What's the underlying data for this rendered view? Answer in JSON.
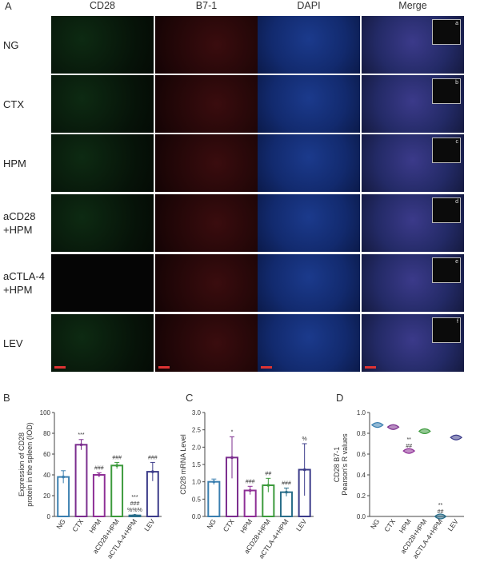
{
  "figure_a": {
    "letter": "A",
    "columns": [
      "CD28",
      "B7-1",
      "DAPI",
      "Merge"
    ],
    "rows": [
      {
        "label": "NG",
        "inset": "a"
      },
      {
        "label": "CTX",
        "inset": "b"
      },
      {
        "label": "HPM",
        "inset": "c"
      },
      {
        "label": "aCD28\n+HPM",
        "inset": "d"
      },
      {
        "label": "aCTLA-4\n+HPM",
        "inset": "e"
      },
      {
        "label": "LEV",
        "inset": "f"
      }
    ],
    "colors": {
      "cd28": "#0d2a12",
      "b71": "#3a0c0e",
      "dapi": "#1b3a8c",
      "merge": "#3b3a8a"
    }
  },
  "chart_data": [
    {
      "panel": "B",
      "type": "bar",
      "ylabel": "Expression of CD28 protein in the spleen (IOD)",
      "ylim": [
        0,
        100
      ],
      "yticks": [
        "0",
        "20",
        "40",
        "60",
        "80",
        "100"
      ],
      "categories": [
        "NG",
        "CTX",
        "HPM",
        "aCD28+HPM",
        "aCTLA-4+HPM",
        "LEV"
      ],
      "values": [
        38,
        69,
        40,
        49,
        1,
        43
      ],
      "errors": [
        6,
        5,
        2,
        3,
        0.5,
        9
      ],
      "colors": [
        "#3a7fb0",
        "#7b2d8e",
        "#8e2f96",
        "#3c9a3c",
        "#2a6e8a",
        "#3c3c8a"
      ],
      "annotations": [
        "",
        "***",
        "###",
        "###",
        "***\n###\n%%%",
        "###"
      ]
    },
    {
      "panel": "C",
      "type": "bar",
      "ylabel": "CD28 mRNA Level",
      "ylim": [
        0,
        3.0
      ],
      "yticks": [
        "0.0",
        "0.5",
        "1.0",
        "1.5",
        "2.0",
        "2.5",
        "3.0"
      ],
      "categories": [
        "NG",
        "CTX",
        "HPM",
        "aCD28+HPM",
        "aCTLA-4+HPM",
        "LEV"
      ],
      "values": [
        1.0,
        1.7,
        0.75,
        0.9,
        0.7,
        1.35
      ],
      "errors": [
        0.08,
        0.6,
        0.12,
        0.2,
        0.12,
        0.75
      ],
      "colors": [
        "#3a7fb0",
        "#7b2d8e",
        "#8e2f96",
        "#3c9a3c",
        "#2a6e8a",
        "#3c3c8a"
      ],
      "annotations": [
        "",
        "*",
        "###",
        "##",
        "###",
        "%"
      ]
    },
    {
      "panel": "D",
      "type": "scatter",
      "ylabel": "CD28 B7-1 Pearson's R values",
      "ylim": [
        0,
        1.0
      ],
      "yticks": [
        "0.0",
        "0.2",
        "0.4",
        "0.6",
        "0.8",
        "1.0"
      ],
      "categories": [
        "NG",
        "CTX",
        "HPM",
        "aCD28+HPM",
        "aCTLA-4+HPM",
        "LEV"
      ],
      "values": [
        0.88,
        0.86,
        0.63,
        0.82,
        0.0,
        0.76
      ],
      "colors": [
        "#3a7fb0",
        "#7b2d8e",
        "#8e2f96",
        "#3c9a3c",
        "#2a6e8a",
        "#3c3c8a"
      ],
      "annotations": [
        "",
        "",
        "**\n##",
        "",
        "**\n##",
        ""
      ]
    }
  ]
}
